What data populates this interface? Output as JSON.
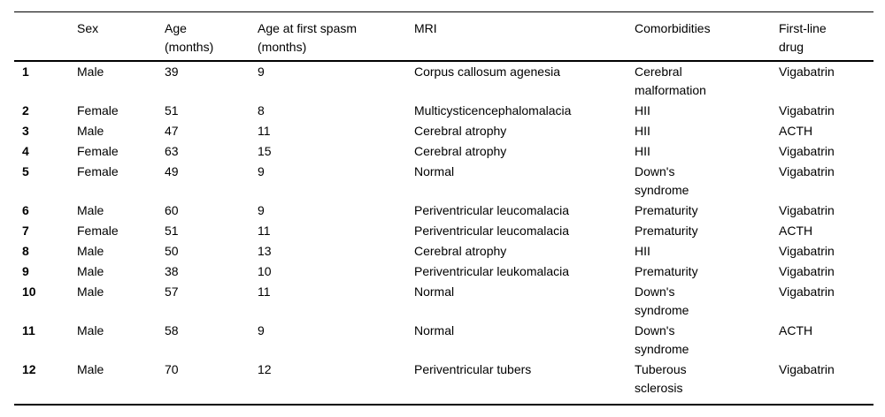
{
  "table": {
    "column_keys": [
      "id",
      "sex",
      "age",
      "age_first_spasm",
      "mri",
      "comorbidities",
      "drug"
    ],
    "columns": [
      {
        "key": "id",
        "label": ""
      },
      {
        "key": "sex",
        "label": "Sex"
      },
      {
        "key": "age",
        "label": "Age\n(months)"
      },
      {
        "key": "age_first_spasm",
        "label": "Age at first spasm\n(months)"
      },
      {
        "key": "mri",
        "label": "MRI"
      },
      {
        "key": "comorbidities",
        "label": "Comorbidities"
      },
      {
        "key": "drug",
        "label": "First-line\ndrug"
      }
    ],
    "rows": [
      {
        "id": "1",
        "sex": "Male",
        "age": "39",
        "age_first_spasm": "9",
        "mri": "Corpus callosum agenesia",
        "comorbidities": "Cerebral\nmalformation",
        "drug": "Vigabatrin"
      },
      {
        "id": "2",
        "sex": "Female",
        "age": "51",
        "age_first_spasm": "8",
        "mri": "Multicysticencephalomalacia",
        "comorbidities": "HII",
        "drug": "Vigabatrin"
      },
      {
        "id": "3",
        "sex": "Male",
        "age": "47",
        "age_first_spasm": "11",
        "mri": "Cerebral atrophy",
        "comorbidities": "HII",
        "drug": "ACTH"
      },
      {
        "id": "4",
        "sex": "Female",
        "age": "63",
        "age_first_spasm": "15",
        "mri": "Cerebral atrophy",
        "comorbidities": "HII",
        "drug": "Vigabatrin"
      },
      {
        "id": "5",
        "sex": "Female",
        "age": "49",
        "age_first_spasm": "9",
        "mri": "Normal",
        "comorbidities": "Down's\nsyndrome",
        "drug": "Vigabatrin"
      },
      {
        "id": "6",
        "sex": "Male",
        "age": "60",
        "age_first_spasm": "9",
        "mri": "Periventricular leucomalacia",
        "comorbidities": "Prematurity",
        "drug": "Vigabatrin"
      },
      {
        "id": "7",
        "sex": "Female",
        "age": "51",
        "age_first_spasm": "11",
        "mri": "Periventricular leucomalacia",
        "comorbidities": "Prematurity",
        "drug": "ACTH"
      },
      {
        "id": "8",
        "sex": "Male",
        "age": "50",
        "age_first_spasm": "13",
        "mri": "Cerebral atrophy",
        "comorbidities": "HII",
        "drug": "Vigabatrin"
      },
      {
        "id": "9",
        "sex": "Male",
        "age": "38",
        "age_first_spasm": "10",
        "mri": "Periventricular leukomalacia",
        "comorbidities": "Prematurity",
        "drug": "Vigabatrin"
      },
      {
        "id": "10",
        "sex": "Male",
        "age": "57",
        "age_first_spasm": "11",
        "mri": "Normal",
        "comorbidities": "Down's\nsyndrome",
        "drug": "Vigabatrin"
      },
      {
        "id": "11",
        "sex": "Male",
        "age": "58",
        "age_first_spasm": "9",
        "mri": "Normal",
        "comorbidities": "Down's\nsyndrome",
        "drug": "ACTH"
      },
      {
        "id": "12",
        "sex": "Male",
        "age": "70",
        "age_first_spasm": "12",
        "mri": "Periventricular tubers",
        "comorbidities": "Tuberous\nsclerosis",
        "drug": "Vigabatrin"
      }
    ]
  }
}
